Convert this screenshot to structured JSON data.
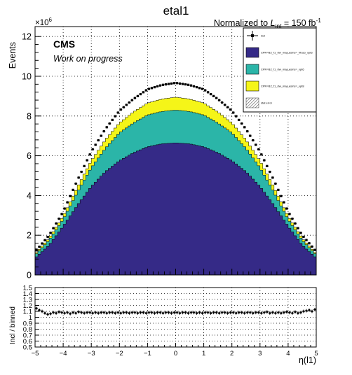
{
  "title": "etal1",
  "lumi_label": {
    "prefix": "Normalized to ",
    "L": "L",
    "sub": "int",
    "suffix": " = 150 fb",
    "sup": "-1"
  },
  "cms_label": "CMS",
  "cms_sublabel": "Work on progress",
  "top_ylabel": "Events",
  "y_multiplier": {
    "base": "×10",
    "exp": "6"
  },
  "bottom_ylabel": "Incl / binned",
  "xlabel": "η(l1)",
  "legend": [
    {
      "label": "incl",
      "style": "marker",
      "color": "#000000"
    },
    {
      "label": "CPR=B2_f1_rtw_map,esms=_f/fuzo_xpt3",
      "style": "fill",
      "color": "#352a87"
    },
    {
      "label": "CPR=B2_f1_rtw_map,esms=_xpt6",
      "style": "fill",
      "color": "#2bb5a8"
    },
    {
      "label": "CPR=B2_f1_rtw_map,esms=_xpt8",
      "style": "fill",
      "color": "#f5f518"
    },
    {
      "label": "stat error",
      "style": "hatch",
      "color": "#555555"
    }
  ],
  "chart_data": [
    {
      "type": "histogram",
      "stacked": true,
      "x_range": [
        -5,
        5
      ],
      "ylim": [
        0,
        12.5
      ],
      "y_scale_factor": 1000000,
      "x_ticks": [
        "−5",
        "−4",
        "−3",
        "−2",
        "−1",
        "0",
        "1",
        "2",
        "3",
        "4",
        "5"
      ],
      "y_ticks": [
        "0",
        "2",
        "4",
        "6",
        "8",
        "10",
        "12"
      ],
      "grid": true,
      "legend_position": "top-right",
      "bin_width": 0.1,
      "series": [
        {
          "name": "CPR=B2_f1_rtw_map,esms=_f/fuzo_xpt3",
          "color": "#352a87",
          "shape_points": [
            [
              -5,
              0.85
            ],
            [
              -4.5,
              1.5
            ],
            [
              -4.0,
              2.45
            ],
            [
              -3.5,
              3.5
            ],
            [
              -3.0,
              4.45
            ],
            [
              -2.5,
              5.2
            ],
            [
              -2.0,
              5.75
            ],
            [
              -1.5,
              6.15
            ],
            [
              -1.0,
              6.45
            ],
            [
              -0.5,
              6.6
            ],
            [
              0,
              6.65
            ],
            [
              0.5,
              6.6
            ],
            [
              1.0,
              6.45
            ],
            [
              1.5,
              6.15
            ],
            [
              2.0,
              5.75
            ],
            [
              2.5,
              5.2
            ],
            [
              3.0,
              4.45
            ],
            [
              3.5,
              3.5
            ],
            [
              4.0,
              2.45
            ],
            [
              4.5,
              1.5
            ],
            [
              5,
              0.85
            ]
          ]
        },
        {
          "name": "CPR=B2_f1_rtw_map,esms=_xpt6",
          "color": "#2bb5a8",
          "shape_points": [
            [
              -5,
              0.15
            ],
            [
              -4,
              0.35
            ],
            [
              -3,
              0.95
            ],
            [
              -2,
              1.4
            ],
            [
              -1,
              1.6
            ],
            [
              0,
              1.65
            ],
            [
              1,
              1.6
            ],
            [
              2,
              1.4
            ],
            [
              3,
              0.95
            ],
            [
              4,
              0.35
            ],
            [
              5,
              0.15
            ]
          ]
        },
        {
          "name": "CPR=B2_f1_rtw_map,esms=_xpt8",
          "color": "#f5f518",
          "shape_points": [
            [
              -5,
              0.05
            ],
            [
              -4,
              0.15
            ],
            [
              -3,
              0.35
            ],
            [
              -2,
              0.5
            ],
            [
              -1,
              0.6
            ],
            [
              0,
              0.65
            ],
            [
              1,
              0.6
            ],
            [
              2,
              0.5
            ],
            [
              3,
              0.35
            ],
            [
              4,
              0.15
            ],
            [
              5,
              0.05
            ]
          ]
        },
        {
          "name": "incl",
          "color": "#000000",
          "style": "markers",
          "ratio_to_stack_points": [
            [
              -5,
              1.15
            ],
            [
              -4.9,
              1.1
            ],
            [
              -4.5,
              1.08
            ],
            [
              0,
              1.08
            ],
            [
              4.5,
              1.08
            ],
            [
              5,
              1.12
            ]
          ]
        }
      ]
    },
    {
      "type": "scatter",
      "x_range": [
        -5,
        5
      ],
      "ylim": [
        0.5,
        1.5
      ],
      "y_ticks": [
        "0.5",
        "0.6",
        "0.7",
        "0.8",
        "0.9",
        "1",
        "1.1",
        "1.2",
        "1.3",
        "1.4",
        "1.5"
      ],
      "grid": true,
      "series": [
        {
          "name": "Incl / binned",
          "x": [
            -5.0,
            -4.9,
            -4.8,
            -4.7,
            -4.6,
            -4.5,
            -4.4,
            -4.3,
            -4.2,
            -4.1,
            -4.0,
            -3.9,
            -3.8,
            -3.7,
            -3.6,
            -3.5,
            -3.4,
            -3.3,
            -3.2,
            -3.1,
            -3.0,
            -2.9,
            -2.8,
            -2.7,
            -2.6,
            -2.5,
            -2.4,
            -2.3,
            -2.2,
            -2.1,
            -2.0,
            -1.9,
            -1.8,
            -1.7,
            -1.6,
            -1.5,
            -1.4,
            -1.3,
            -1.2,
            -1.1,
            -1.0,
            -0.9,
            -0.8,
            -0.7,
            -0.6,
            -0.5,
            -0.4,
            -0.3,
            -0.2,
            -0.1,
            0.0,
            0.1,
            0.2,
            0.3,
            0.4,
            0.5,
            0.6,
            0.7,
            0.8,
            0.9,
            1.0,
            1.1,
            1.2,
            1.3,
            1.4,
            1.5,
            1.6,
            1.7,
            1.8,
            1.9,
            2.0,
            2.1,
            2.2,
            2.3,
            2.4,
            2.5,
            2.6,
            2.7,
            2.8,
            2.9,
            3.0,
            3.1,
            3.2,
            3.3,
            3.4,
            3.5,
            3.6,
            3.7,
            3.8,
            3.9,
            4.0,
            4.1,
            4.2,
            4.3,
            4.4,
            4.5,
            4.6,
            4.7,
            4.8,
            4.9
          ],
          "y": [
            1.15,
            1.12,
            1.1,
            1.07,
            1.05,
            1.06,
            1.08,
            1.07,
            1.09,
            1.08,
            1.07,
            1.08,
            1.06,
            1.08,
            1.07,
            1.09,
            1.08,
            1.07,
            1.08,
            1.08,
            1.07,
            1.08,
            1.07,
            1.08,
            1.08,
            1.07,
            1.08,
            1.08,
            1.07,
            1.08,
            1.07,
            1.08,
            1.08,
            1.07,
            1.08,
            1.08,
            1.07,
            1.08,
            1.08,
            1.07,
            1.08,
            1.08,
            1.07,
            1.08,
            1.08,
            1.07,
            1.08,
            1.08,
            1.07,
            1.08,
            1.08,
            1.07,
            1.08,
            1.08,
            1.07,
            1.08,
            1.08,
            1.07,
            1.08,
            1.07,
            1.08,
            1.08,
            1.07,
            1.08,
            1.08,
            1.07,
            1.08,
            1.08,
            1.07,
            1.08,
            1.08,
            1.07,
            1.08,
            1.08,
            1.07,
            1.08,
            1.08,
            1.07,
            1.08,
            1.08,
            1.07,
            1.08,
            1.09,
            1.07,
            1.08,
            1.07,
            1.08,
            1.07,
            1.08,
            1.09,
            1.08,
            1.07,
            1.09,
            1.07,
            1.08,
            1.1,
            1.11,
            1.12,
            1.1,
            1.13
          ]
        }
      ]
    }
  ]
}
